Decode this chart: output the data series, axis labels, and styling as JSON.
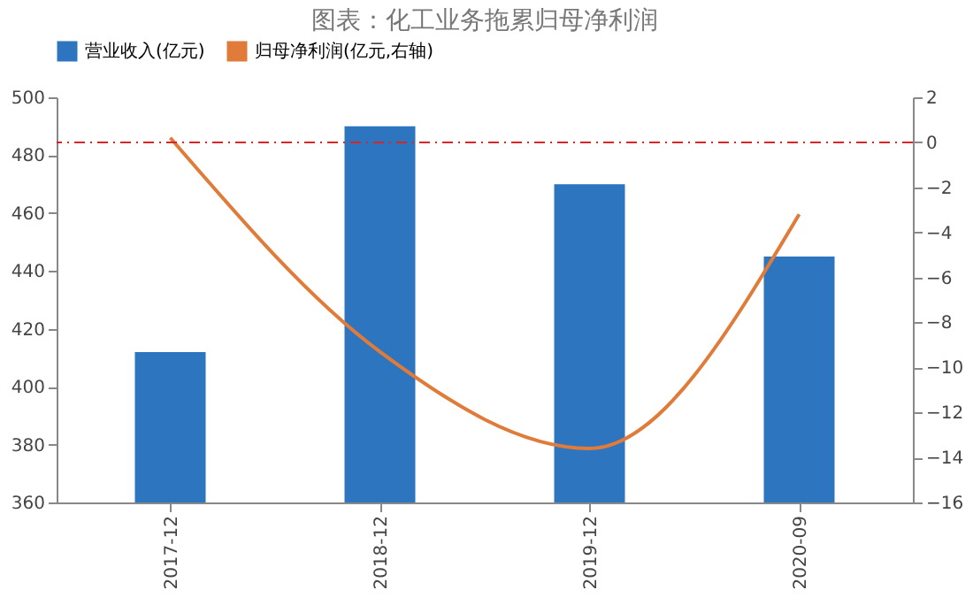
{
  "chart_data": {
    "type": "bar",
    "title": "图表：化工业务拖累归母净利润",
    "categories": [
      "2017-12",
      "2018-12",
      "2019-12",
      "2020-09"
    ],
    "series": [
      {
        "name": "营业收入(亿元)",
        "color": "#2e75c0",
        "values": [
          412,
          490,
          470,
          445
        ]
      },
      {
        "name": "归母净利润(亿元,右轴)",
        "type": "line",
        "axis": "y2",
        "color": "#e07b39",
        "values": [
          0.2,
          -9.3,
          -13.6,
          -3.2
        ]
      }
    ],
    "ylim": [
      360,
      500
    ],
    "yticks": [
      360,
      380,
      400,
      420,
      440,
      460,
      480,
      500
    ],
    "y2lim": [
      -16,
      2
    ],
    "y2ticks": [
      -16,
      -14,
      -12,
      -10,
      -8,
      -6,
      -4,
      -2,
      0,
      2
    ],
    "ref_lines": [
      {
        "axis": "y2",
        "value": 0,
        "color": "#d62728",
        "line_style": "dashdot"
      }
    ],
    "legend": "top",
    "grid": false
  }
}
